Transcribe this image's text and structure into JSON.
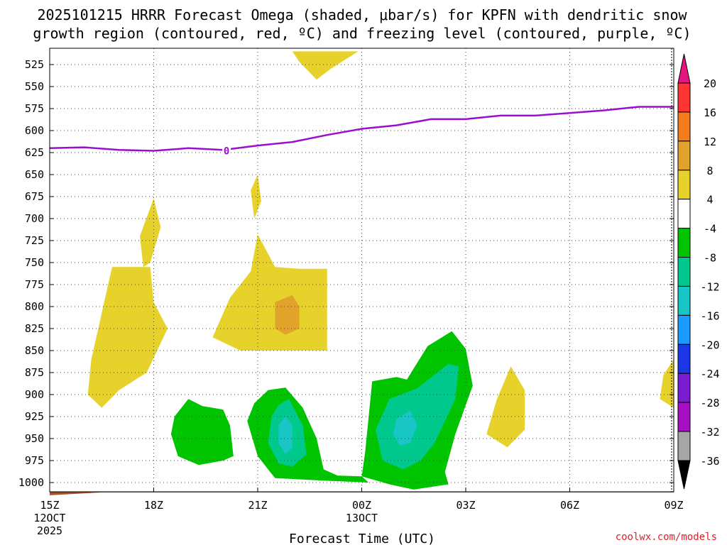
{
  "chart_data": {
    "type": "heatmap",
    "title_line1": "2025101215 HRRR Forecast Omega (shaded, μbar/s) for KPFN with dendritic snow",
    "title_line2": "growth region (contoured, red, ºC) and freezing level (contoured, purple, ºC)",
    "xlabel": "Forecast Time (UTC)",
    "credit": "coolwx.com/models",
    "x_range_hours": [
      0,
      18
    ],
    "x_ticks": [
      {
        "hour": 0,
        "label": "15Z",
        "sub1": "12OCT",
        "sub2": "2025"
      },
      {
        "hour": 3,
        "label": "18Z",
        "sub1": "",
        "sub2": ""
      },
      {
        "hour": 6,
        "label": "21Z",
        "sub1": "",
        "sub2": ""
      },
      {
        "hour": 9,
        "label": "00Z",
        "sub1": "13OCT",
        "sub2": ""
      },
      {
        "hour": 12,
        "label": "03Z",
        "sub1": "",
        "sub2": ""
      },
      {
        "hour": 15,
        "label": "06Z",
        "sub1": "",
        "sub2": ""
      },
      {
        "hour": 18,
        "label": "09Z",
        "sub1": "",
        "sub2": ""
      }
    ],
    "y_ticks_hpa": [
      525,
      550,
      575,
      600,
      625,
      650,
      675,
      700,
      725,
      750,
      775,
      800,
      825,
      850,
      875,
      900,
      925,
      950,
      975,
      1000
    ],
    "y_range_hpa": [
      510,
      1012
    ],
    "ground_hpa": 1012,
    "freezing_level": {
      "label": "0",
      "label_at": [
        5.1,
        622
      ],
      "points": [
        [
          0,
          620
        ],
        [
          1,
          619
        ],
        [
          2,
          622
        ],
        [
          3,
          623
        ],
        [
          4,
          620
        ],
        [
          5,
          622
        ],
        [
          6,
          617
        ],
        [
          7,
          613
        ],
        [
          8,
          605
        ],
        [
          9,
          598
        ],
        [
          10,
          594
        ],
        [
          11,
          587
        ],
        [
          12,
          587
        ],
        [
          13,
          583
        ],
        [
          14,
          583
        ],
        [
          15,
          580
        ],
        [
          16,
          577
        ],
        [
          17,
          573
        ],
        [
          18,
          573
        ]
      ]
    },
    "colorbar": {
      "labels": [
        "20",
        "16",
        "12",
        "8",
        "4",
        "-4",
        "-8",
        "-12",
        "-16",
        "-20",
        "-24",
        "-28",
        "-32",
        "-36"
      ],
      "colors": [
        "#ff3535",
        "#f57c1c",
        "#e2a32a",
        "#e6d22b",
        "#ffffff",
        "#00c400",
        "#00c98e",
        "#18c6c6",
        "#1b9aff",
        "#1c37e6",
        "#7a1ccf",
        "#a60fc4",
        "#a6a6a6"
      ],
      "top_arrow_color": "#e6147f",
      "bottom_arrow_color": "#000000"
    },
    "omega_regions": [
      {
        "name": "yellow-region-top-center",
        "level": "4 to 8",
        "color": "#e6d22b",
        "points": [
          [
            7.0,
            510
          ],
          [
            8.3,
            510
          ],
          [
            8.9,
            510
          ],
          [
            8.1,
            530
          ],
          [
            7.7,
            542
          ],
          [
            7.2,
            522
          ]
        ]
      },
      {
        "name": "yellow-region-left-tall",
        "level": "4 to 8",
        "color": "#e6d22b",
        "points": [
          [
            3.0,
            677
          ],
          [
            3.2,
            710
          ],
          [
            2.9,
            750
          ],
          [
            2.7,
            755
          ],
          [
            2.6,
            720
          ]
        ]
      },
      {
        "name": "yellow-region-left-large",
        "level": "4 to 8",
        "color": "#e6d22b",
        "points": [
          [
            1.8,
            755
          ],
          [
            2.7,
            755
          ],
          [
            2.9,
            755
          ],
          [
            3.0,
            795
          ],
          [
            3.4,
            825
          ],
          [
            2.8,
            875
          ],
          [
            2.0,
            895
          ],
          [
            1.5,
            915
          ],
          [
            1.1,
            900
          ],
          [
            1.2,
            860
          ],
          [
            1.4,
            825
          ],
          [
            1.6,
            790
          ]
        ]
      },
      {
        "name": "yellow-region-center-spike",
        "level": "4 to 8",
        "color": "#e6d22b",
        "points": [
          [
            5.9,
            700
          ],
          [
            5.8,
            668
          ],
          [
            6.0,
            650
          ],
          [
            6.1,
            680
          ]
        ]
      },
      {
        "name": "yellow-region-center-block",
        "level": "4 to 8",
        "color": "#e6d22b",
        "points": [
          [
            6.0,
            718
          ],
          [
            6.5,
            755
          ],
          [
            7.2,
            757
          ],
          [
            8.0,
            757
          ],
          [
            8.0,
            850
          ],
          [
            6.8,
            850
          ],
          [
            5.5,
            850
          ],
          [
            4.7,
            835
          ],
          [
            5.2,
            790
          ],
          [
            5.8,
            760
          ]
        ]
      },
      {
        "name": "yellow-region-right-small",
        "level": "4 to 8",
        "color": "#e6d22b",
        "points": [
          [
            13.3,
            868
          ],
          [
            13.7,
            895
          ],
          [
            13.7,
            940
          ],
          [
            13.2,
            960
          ],
          [
            12.6,
            945
          ],
          [
            12.9,
            905
          ]
        ]
      },
      {
        "name": "yellow-region-right-edge",
        "level": "4 to 8",
        "color": "#e6d22b",
        "points": [
          [
            18.0,
            860
          ],
          [
            17.7,
            878
          ],
          [
            17.6,
            905
          ],
          [
            18.0,
            915
          ]
        ]
      },
      {
        "name": "orange-region-center",
        "level": "8 to 12",
        "color": "#e2a32a",
        "points": [
          [
            6.5,
            795
          ],
          [
            7.0,
            787
          ],
          [
            7.2,
            800
          ],
          [
            7.2,
            825
          ],
          [
            6.8,
            832
          ],
          [
            6.5,
            825
          ]
        ]
      },
      {
        "name": "green-region-left",
        "level": "-8 to -4",
        "color": "#00c400",
        "points": [
          [
            4.4,
            913
          ],
          [
            5.0,
            917
          ],
          [
            5.2,
            935
          ],
          [
            5.3,
            970
          ],
          [
            5.0,
            975
          ],
          [
            4.3,
            980
          ],
          [
            3.7,
            970
          ],
          [
            3.5,
            945
          ],
          [
            3.6,
            925
          ],
          [
            4.0,
            905
          ]
        ]
      },
      {
        "name": "green-region-center",
        "level": "-8 to -4",
        "color": "#00c400",
        "points": [
          [
            5.9,
            910
          ],
          [
            6.3,
            895
          ],
          [
            6.8,
            892
          ],
          [
            7.3,
            915
          ],
          [
            7.7,
            950
          ],
          [
            7.9,
            985
          ],
          [
            8.3,
            992
          ],
          [
            9.0,
            993
          ],
          [
            9.2,
            1000
          ],
          [
            8.0,
            998
          ],
          [
            6.5,
            995
          ],
          [
            6.0,
            970
          ],
          [
            5.7,
            930
          ]
        ]
      },
      {
        "name": "green-region-right",
        "level": "-8 to -4",
        "color": "#00c400",
        "points": [
          [
            9.3,
            885
          ],
          [
            10.0,
            880
          ],
          [
            10.3,
            883
          ],
          [
            10.9,
            845
          ],
          [
            11.6,
            828
          ],
          [
            12.0,
            848
          ],
          [
            12.2,
            890
          ],
          [
            11.7,
            945
          ],
          [
            11.4,
            988
          ],
          [
            11.5,
            1002
          ],
          [
            10.5,
            1008
          ],
          [
            9.8,
            1002
          ],
          [
            9.0,
            993
          ],
          [
            9.1,
            965
          ],
          [
            9.2,
            925
          ]
        ]
      },
      {
        "name": "teal-region-center",
        "level": "-12 to -8",
        "color": "#00c98e",
        "points": [
          [
            6.6,
            912
          ],
          [
            6.9,
            905
          ],
          [
            7.3,
            935
          ],
          [
            7.4,
            968
          ],
          [
            7.0,
            982
          ],
          [
            6.6,
            978
          ],
          [
            6.3,
            955
          ],
          [
            6.4,
            925
          ]
        ]
      },
      {
        "name": "teal-region-right",
        "level": "-12 to -8",
        "color": "#00c98e",
        "points": [
          [
            9.8,
            905
          ],
          [
            10.6,
            893
          ],
          [
            11.5,
            865
          ],
          [
            11.8,
            868
          ],
          [
            11.7,
            905
          ],
          [
            11.1,
            955
          ],
          [
            10.7,
            975
          ],
          [
            10.2,
            985
          ],
          [
            9.6,
            975
          ],
          [
            9.4,
            940
          ]
        ]
      },
      {
        "name": "cyan-region-center",
        "level": "-16 to -12",
        "color": "#18c6c6",
        "points": [
          [
            6.8,
            925
          ],
          [
            7.0,
            935
          ],
          [
            7.0,
            960
          ],
          [
            6.8,
            968
          ],
          [
            6.6,
            955
          ],
          [
            6.6,
            935
          ]
        ]
      },
      {
        "name": "cyan-region-right",
        "level": "-16 to -12",
        "color": "#18c6c6",
        "points": [
          [
            10.0,
            928
          ],
          [
            10.4,
            918
          ],
          [
            10.6,
            935
          ],
          [
            10.4,
            955
          ],
          [
            10.1,
            958
          ],
          [
            9.9,
            945
          ]
        ]
      }
    ]
  }
}
